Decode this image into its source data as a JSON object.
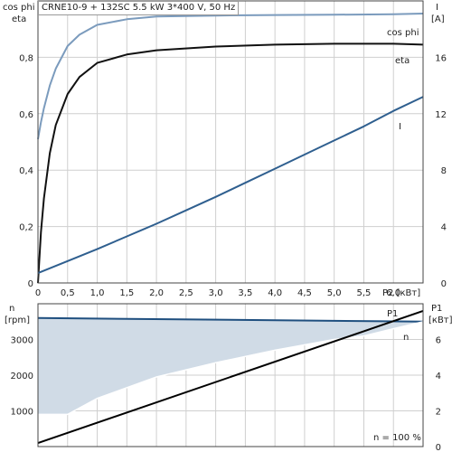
{
  "header": {
    "title": "CRNE10-9 + 132SC  5.5 kW  3*400 V, 50 Hz"
  },
  "footer": {
    "note": "n = 100 %"
  },
  "colors": {
    "cos_phi": "#7b9bbd",
    "eta": "#111111",
    "current": "#2f5f8f",
    "speed": "#1f4f7f",
    "speed_fill": "#d0dbe6",
    "power": "#000000",
    "grid": "#cfcfcf"
  },
  "chart_data": [
    {
      "type": "line",
      "ylabel_left": [
        "cos phi",
        "eta"
      ],
      "ylabel_right": [
        "I",
        "[A]"
      ],
      "xlabel": "P2 [кВт]",
      "xlim": [
        0,
        6.5
      ],
      "ylim_left": [
        0,
        1.0
      ],
      "ylim_right": [
        0,
        20
      ],
      "x_ticks": [
        "0",
        "0,5",
        "1,0",
        "1,5",
        "2,0",
        "2,5",
        "3,0",
        "3,5",
        "4,0",
        "4,5",
        "5,0",
        "5,5",
        "6,0"
      ],
      "y_ticks_left": [
        "0",
        "0,2",
        "0,4",
        "0,6",
        "0,8"
      ],
      "y_ticks_right": [
        "0",
        "4",
        "8",
        "12",
        "16"
      ],
      "grid": true,
      "series": [
        {
          "name": "cos phi",
          "axis": "left",
          "x": [
            0,
            0.05,
            0.1,
            0.2,
            0.3,
            0.5,
            0.7,
            1.0,
            1.5,
            2.0,
            3.0,
            4.0,
            5.0,
            6.0,
            6.5
          ],
          "y": [
            0.51,
            0.57,
            0.62,
            0.7,
            0.76,
            0.84,
            0.88,
            0.915,
            0.935,
            0.945,
            0.948,
            0.95,
            0.951,
            0.953,
            0.955
          ]
        },
        {
          "name": "eta",
          "axis": "left",
          "x": [
            0,
            0.05,
            0.1,
            0.2,
            0.3,
            0.5,
            0.7,
            1.0,
            1.5,
            2.0,
            3.0,
            4.0,
            5.0,
            6.0,
            6.5
          ],
          "y": [
            0.0,
            0.18,
            0.3,
            0.46,
            0.56,
            0.67,
            0.73,
            0.78,
            0.81,
            0.825,
            0.838,
            0.845,
            0.848,
            0.848,
            0.845
          ]
        },
        {
          "name": "I",
          "axis": "right",
          "x": [
            0,
            0.5,
            1.0,
            1.5,
            2.0,
            2.5,
            3.0,
            3.5,
            4.0,
            4.5,
            5.0,
            5.5,
            6.0,
            6.5
          ],
          "y": [
            0.7,
            1.55,
            2.4,
            3.3,
            4.2,
            5.15,
            6.1,
            7.1,
            8.1,
            9.1,
            10.1,
            11.1,
            12.2,
            13.2
          ]
        }
      ]
    },
    {
      "type": "line",
      "ylabel_left": [
        "n",
        "[rpm]"
      ],
      "ylabel_right": [
        "P1",
        "[кВт]"
      ],
      "xlim": [
        0,
        6.5
      ],
      "ylim_left": [
        0,
        4000
      ],
      "ylim_right": [
        0,
        8
      ],
      "y_ticks_left": [
        "1000",
        "2000",
        "3000"
      ],
      "y_ticks_right": [
        "0",
        "2",
        "4",
        "6"
      ],
      "grid": true,
      "series": [
        {
          "name": "n",
          "axis": "left",
          "role": "min speed",
          "x": [
            0,
            0.5,
            1.0,
            1.5,
            2.0,
            3.0,
            4.0,
            5.0,
            5.5,
            6.0,
            6.5
          ],
          "y": [
            900,
            900,
            1350,
            1650,
            1950,
            2350,
            2700,
            3000,
            3100,
            3300,
            3500
          ]
        },
        {
          "name": "",
          "axis": "left",
          "role": "max speed",
          "x": [
            0,
            6.5
          ],
          "y": [
            3600,
            3500
          ]
        },
        {
          "name": "P1",
          "axis": "right",
          "x": [
            0,
            6.5
          ],
          "y": [
            0.2,
            7.6
          ]
        }
      ]
    }
  ]
}
